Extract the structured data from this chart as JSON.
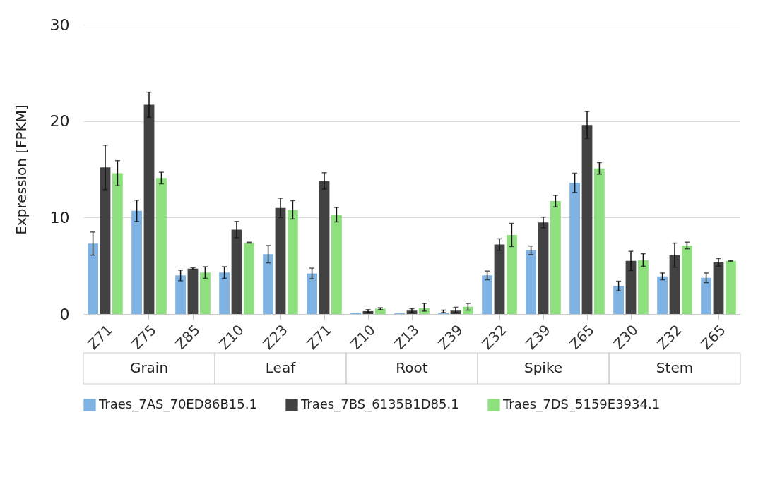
{
  "chart_data": {
    "type": "bar",
    "ylabel": "Expression [FPKM]",
    "categories": [
      "Z71",
      "Z75",
      "Z85",
      "Z10",
      "Z23",
      "Z71",
      "Z10",
      "Z13",
      "Z39",
      "Z32",
      "Z39",
      "Z65",
      "Z30",
      "Z32",
      "Z65"
    ],
    "annotations": [
      "Grain",
      "Leaf",
      "Root",
      "Spike",
      "Stem"
    ],
    "series": [
      {
        "name": "Traes_7AS_70ED86B15.1",
        "color": "#7eb3e3",
        "values": [
          7.3,
          10.7,
          4.0,
          4.3,
          6.2,
          4.2,
          0.15,
          0.1,
          0.15,
          4.0,
          6.6,
          13.6,
          2.9,
          3.9,
          3.75
        ],
        "errors": [
          1.2,
          1.1,
          0.55,
          0.6,
          0.9,
          0.55,
          null,
          null,
          [
            0.15,
            0.4
          ],
          0.45,
          0.45,
          1.0,
          0.5,
          0.35,
          0.5
        ]
      },
      {
        "name": "Traes_7BS_6135B1D85.1",
        "color": "#424242",
        "values": [
          15.2,
          21.7,
          4.7,
          8.75,
          11.0,
          13.8,
          0.3,
          0.35,
          0.35,
          7.2,
          9.5,
          19.6,
          5.5,
          6.1,
          5.35
        ],
        "errors": [
          2.3,
          1.3,
          0.1,
          0.85,
          1.0,
          0.85,
          0.15,
          0.2,
          [
            0.15,
            0.7
          ],
          0.6,
          0.55,
          1.4,
          1.0,
          1.25,
          0.4
        ]
      },
      {
        "name": "Traes_7DS_5159E3934.1",
        "color": "#8ee07e",
        "values": [
          14.6,
          14.1,
          4.3,
          7.4,
          10.8,
          10.3,
          0.55,
          0.6,
          0.75,
          8.2,
          11.7,
          15.1,
          5.6,
          7.1,
          5.5
        ],
        "errors": [
          1.3,
          0.6,
          0.6,
          0.05,
          0.95,
          0.75,
          0.1,
          [
            0.3,
            1.1
          ],
          0.35,
          1.2,
          0.6,
          0.6,
          0.65,
          0.35,
          0.05
        ]
      }
    ],
    "ylim": [
      0,
      30
    ],
    "yticks": [
      0,
      10,
      20,
      30
    ],
    "grid": "y",
    "legend": "bottom"
  }
}
